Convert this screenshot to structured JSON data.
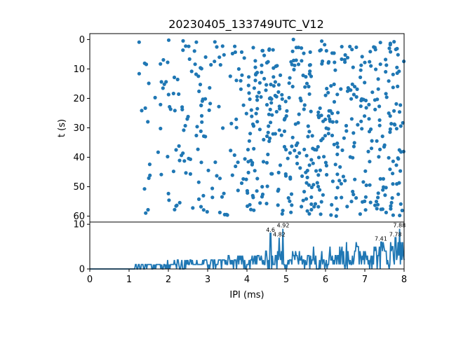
{
  "chart_data": [
    {
      "type": "scatter",
      "title": "20230405_133749UTC_V12",
      "xlabel": "",
      "ylabel": "t (s)",
      "xlim": [
        0,
        8
      ],
      "ylim": [
        62,
        -2
      ],
      "y_inverted": true,
      "yticks": [
        0,
        10,
        20,
        30,
        40,
        50,
        60
      ],
      "color": "#1f77b4",
      "points_note": "dense random scatter of IPI values vs time",
      "seed": 12
    },
    {
      "type": "line",
      "xlabel": "IPI (ms)",
      "ylabel": "",
      "xlim": [
        0,
        8
      ],
      "ylim": [
        0,
        10.5
      ],
      "xticks": [
        0,
        1,
        2,
        3,
        4,
        5,
        6,
        7,
        8
      ],
      "yticks": [
        0,
        10
      ],
      "color": "#1f77b4",
      "peaks": [
        {
          "x": 4.6,
          "y": 8,
          "label": "4.6"
        },
        {
          "x": 4.82,
          "y": 7,
          "label": "4.82"
        },
        {
          "x": 4.92,
          "y": 9,
          "label": "4.92"
        },
        {
          "x": 7.41,
          "y": 6,
          "label": "7.41"
        },
        {
          "x": 7.78,
          "y": 7,
          "label": "7.78"
        },
        {
          "x": 7.88,
          "y": 9,
          "label": "7.88"
        }
      ]
    }
  ]
}
